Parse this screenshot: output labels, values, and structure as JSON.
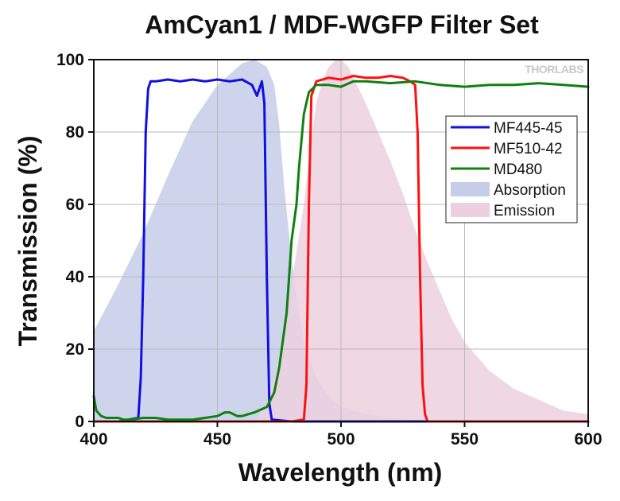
{
  "chart_data": {
    "type": "line",
    "title": "AmCyan1 / MDF-WGFP Filter Set",
    "xlabel": "Wavelength (nm)",
    "ylabel": "Transmission (%)",
    "xlim": [
      400,
      600
    ],
    "ylim": [
      0,
      100
    ],
    "xticks": [
      400,
      450,
      500,
      550,
      600
    ],
    "yticks": [
      0,
      20,
      40,
      60,
      80,
      100
    ],
    "grid": true,
    "legend_position": "right",
    "watermark": "THORLABS",
    "series": [
      {
        "name": "MF445-45",
        "kind": "line",
        "color": "#1010e0",
        "x": [
          400,
          410,
          418,
          419,
          420,
          421,
          422,
          423,
          425,
          430,
          435,
          440,
          445,
          450,
          455,
          460,
          464,
          466,
          467,
          468,
          469,
          470,
          471,
          472,
          480,
          500,
          550,
          600
        ],
        "y": [
          0,
          0,
          1,
          12,
          40,
          80,
          92,
          94,
          94,
          94.5,
          94,
          94.5,
          94,
          94.5,
          94,
          94.5,
          93,
          90,
          92,
          94,
          88,
          40,
          5,
          0.5,
          0,
          0,
          0,
          0
        ]
      },
      {
        "name": "MF510-42",
        "kind": "line",
        "color": "#ff1010",
        "x": [
          400,
          480,
          485,
          486,
          487,
          488,
          490,
          495,
          500,
          505,
          510,
          515,
          520,
          525,
          528,
          530,
          531,
          532,
          533,
          534,
          535,
          540,
          600
        ],
        "y": [
          0,
          0,
          0.5,
          10,
          60,
          90,
          94,
          95,
          94.5,
          95.5,
          95,
          95,
          95.5,
          95,
          94,
          93,
          80,
          40,
          10,
          2,
          0,
          0,
          0
        ]
      },
      {
        "name": "MD480",
        "kind": "line",
        "color": "#108010",
        "x": [
          400,
          401,
          403,
          405,
          408,
          410,
          412,
          415,
          420,
          425,
          430,
          435,
          440,
          445,
          450,
          453,
          455,
          458,
          460,
          465,
          470,
          473,
          475,
          478,
          480,
          482,
          483,
          485,
          487,
          490,
          495,
          500,
          505,
          510,
          520,
          530,
          540,
          550,
          560,
          570,
          580,
          590,
          600
        ],
        "y": [
          7,
          3,
          1.5,
          1,
          1,
          1,
          0.5,
          0.5,
          1,
          1,
          0.5,
          0.5,
          0.5,
          1,
          1.5,
          2.5,
          2.5,
          1.5,
          1.5,
          2.5,
          4,
          8,
          15,
          30,
          50,
          60,
          70,
          85,
          91,
          93,
          93,
          92.5,
          94,
          94,
          93.5,
          94,
          93,
          92.5,
          93,
          93,
          93.5,
          93,
          92.5
        ]
      },
      {
        "name": "Absorption",
        "kind": "area",
        "color": "#c5cde8",
        "x": [
          400,
          410,
          420,
          430,
          440,
          445,
          450,
          455,
          460,
          465,
          470,
          473,
          475,
          477,
          480,
          483,
          485,
          490,
          495,
          500,
          510,
          520,
          530,
          540,
          550
        ],
        "y": [
          25,
          38,
          52,
          68,
          83,
          88,
          93,
          96,
          99,
          100,
          98,
          93,
          82,
          65,
          45,
          30,
          22,
          12,
          7,
          4,
          2,
          1,
          0.5,
          0.2,
          0
        ]
      },
      {
        "name": "Emission",
        "kind": "area",
        "color": "#ecd0df",
        "x": [
          465,
          470,
          475,
          480,
          485,
          488,
          490,
          493,
          495,
          498,
          500,
          503,
          505,
          510,
          515,
          520,
          525,
          530,
          535,
          540,
          545,
          550,
          560,
          570,
          580,
          590,
          600
        ],
        "y": [
          0,
          5,
          18,
          38,
          60,
          78,
          88,
          95,
          98,
          100,
          100,
          98,
          95,
          88,
          80,
          72,
          63,
          53,
          44,
          36,
          28,
          22,
          14,
          9,
          6,
          3,
          2
        ]
      }
    ]
  }
}
